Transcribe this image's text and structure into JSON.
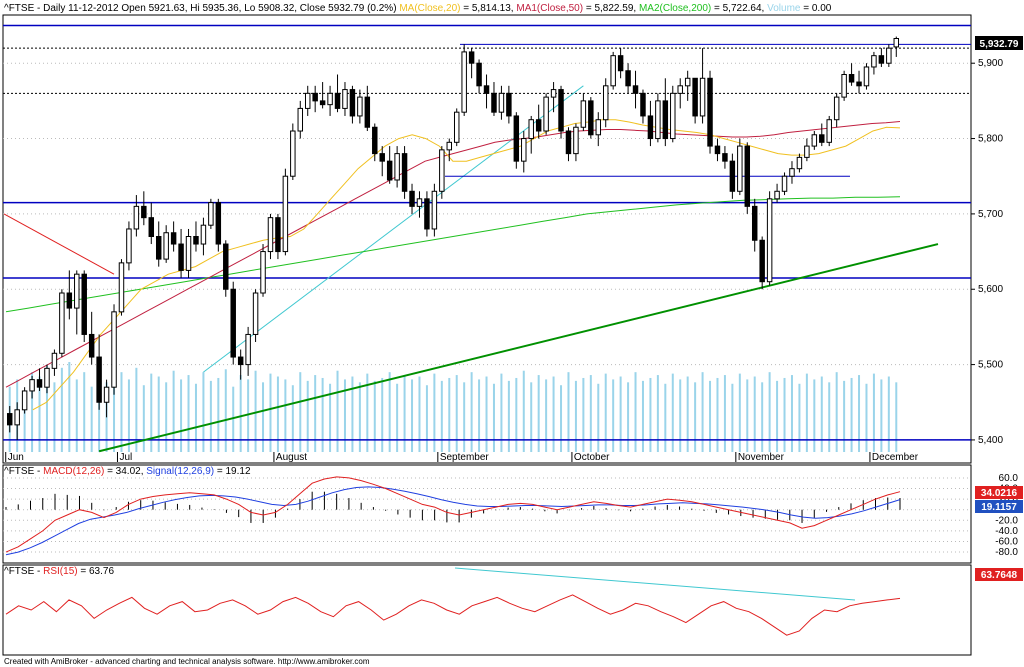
{
  "main_header": {
    "ticker": "^FTSE",
    "ohlc": "- Daily 11-12-2012 Open 5921.63, Hi 5935.36, Lo 5908.32, Close 5932.79 (0.2%)",
    "ma20_label": "MA(Close,20)",
    "ma20_value": "= 5,814.13,",
    "ma50_label": "MA1(Close,50)",
    "ma50_value": "= 5,822.59,",
    "ma200_label": "MA2(Close,200)",
    "ma200_value": "= 5,722.64,",
    "volume_label": "Volume",
    "volume_value": "= 0.00"
  },
  "macd_header": {
    "ticker": "^FTSE",
    "macd_label": "MACD(12,26)",
    "macd_value": "= 34.02,",
    "signal_label": "Signal(12,26,9)",
    "signal_value": "= 19.12"
  },
  "rsi_header": {
    "ticker": "^FTSE",
    "rsi_label": "RSI(15)",
    "rsi_value": "= 63.76"
  },
  "badges": {
    "price": "5,932.79",
    "macd": "34.0216",
    "signal": "19.1157",
    "rsi": "63.7648"
  },
  "footer": "Created with AmiBroker - advanced charting and technical analysis software. http://www.amibroker.com",
  "colors": {
    "ma20": "#f0c020",
    "ma50": "#c02040",
    "ma200": "#20c020",
    "volume": "#9ad4ea",
    "macd": "#e02020",
    "signal": "#2040e0",
    "rsi": "#e02020",
    "trend_green": "#009000",
    "trend_cyan": "#40c8d0",
    "hline_blue": "#0000c0",
    "badge_price": "#000000",
    "badge_macd": "#e02020",
    "badge_signal": "#2050c0",
    "badge_rsi": "#e02020"
  },
  "chart_data": [
    {
      "type": "candlestick",
      "x_axis_labels": [
        "Jun",
        "Jul",
        "August",
        "September",
        "October",
        "November",
        "December"
      ],
      "y_ticks": [
        "5,400",
        "5,500",
        "5,600",
        "5,700",
        "5,800",
        "5,900"
      ],
      "ylim": [
        5380,
        5960
      ],
      "horizontal_levels": [
        5950,
        5920,
        5860,
        5715,
        5615,
        5400
      ],
      "candles": [
        [
          5435,
          5445,
          5410,
          5420
        ],
        [
          5420,
          5450,
          5400,
          5440
        ],
        [
          5440,
          5470,
          5435,
          5465
        ],
        [
          5465,
          5485,
          5455,
          5480
        ],
        [
          5480,
          5495,
          5465,
          5470
        ],
        [
          5470,
          5500,
          5462,
          5495
        ],
        [
          5495,
          5520,
          5485,
          5515
        ],
        [
          5515,
          5600,
          5510,
          5595
        ],
        [
          5595,
          5625,
          5560,
          5575
        ],
        [
          5575,
          5625,
          5540,
          5620
        ],
        [
          5620,
          5625,
          5530,
          5540
        ],
        [
          5540,
          5570,
          5500,
          5510
        ],
        [
          5510,
          5540,
          5440,
          5450
        ],
        [
          5450,
          5480,
          5430,
          5470
        ],
        [
          5470,
          5580,
          5460,
          5570
        ],
        [
          5570,
          5640,
          5565,
          5635
        ],
        [
          5635,
          5690,
          5625,
          5680
        ],
        [
          5680,
          5725,
          5670,
          5710
        ],
        [
          5710,
          5730,
          5685,
          5695
        ],
        [
          5695,
          5715,
          5660,
          5670
        ],
        [
          5670,
          5690,
          5630,
          5640
        ],
        [
          5640,
          5685,
          5635,
          5675
        ],
        [
          5675,
          5690,
          5650,
          5660
        ],
        [
          5660,
          5680,
          5615,
          5625
        ],
        [
          5625,
          5680,
          5615,
          5670
        ],
        [
          5670,
          5690,
          5650,
          5660
        ],
        [
          5660,
          5695,
          5645,
          5685
        ],
        [
          5685,
          5720,
          5680,
          5715
        ],
        [
          5715,
          5720,
          5650,
          5660
        ],
        [
          5660,
          5665,
          5590,
          5600
        ],
        [
          5600,
          5610,
          5500,
          5510
        ],
        [
          5510,
          5520,
          5480,
          5500
        ],
        [
          5500,
          5550,
          5485,
          5540
        ],
        [
          5540,
          5600,
          5530,
          5595
        ],
        [
          5595,
          5660,
          5590,
          5650
        ],
        [
          5650,
          5700,
          5640,
          5695
        ],
        [
          5695,
          5700,
          5640,
          5650
        ],
        [
          5650,
          5760,
          5645,
          5750
        ],
        [
          5750,
          5820,
          5745,
          5810
        ],
        [
          5810,
          5850,
          5800,
          5840
        ],
        [
          5840,
          5870,
          5830,
          5860
        ],
        [
          5860,
          5870,
          5835,
          5850
        ],
        [
          5850,
          5875,
          5840,
          5845
        ],
        [
          5845,
          5870,
          5830,
          5860
        ],
        [
          5860,
          5885,
          5835,
          5840
        ],
        [
          5840,
          5875,
          5830,
          5865
        ],
        [
          5865,
          5870,
          5820,
          5830
        ],
        [
          5830,
          5865,
          5820,
          5855
        ],
        [
          5855,
          5870,
          5810,
          5815
        ],
        [
          5815,
          5820,
          5770,
          5780
        ],
        [
          5780,
          5790,
          5750,
          5770
        ],
        [
          5770,
          5790,
          5740,
          5745
        ],
        [
          5745,
          5790,
          5735,
          5780
        ],
        [
          5780,
          5790,
          5720,
          5730
        ],
        [
          5730,
          5740,
          5700,
          5710
        ],
        [
          5710,
          5730,
          5695,
          5720
        ],
        [
          5720,
          5730,
          5670,
          5680
        ],
        [
          5680,
          5740,
          5670,
          5730
        ],
        [
          5730,
          5790,
          5720,
          5785
        ],
        [
          5785,
          5800,
          5770,
          5795
        ],
        [
          5795,
          5840,
          5790,
          5835
        ],
        [
          5835,
          5925,
          5830,
          5915
        ],
        [
          5915,
          5920,
          5880,
          5900
        ],
        [
          5900,
          5905,
          5860,
          5870
        ],
        [
          5870,
          5885,
          5840,
          5860
        ],
        [
          5860,
          5875,
          5830,
          5835
        ],
        [
          5835,
          5870,
          5825,
          5860
        ],
        [
          5860,
          5870,
          5820,
          5830
        ],
        [
          5830,
          5835,
          5760,
          5770
        ],
        [
          5770,
          5810,
          5755,
          5800
        ],
        [
          5800,
          5830,
          5780,
          5825
        ],
        [
          5825,
          5845,
          5800,
          5810
        ],
        [
          5810,
          5860,
          5805,
          5855
        ],
        [
          5855,
          5875,
          5835,
          5865
        ],
        [
          5865,
          5870,
          5800,
          5810
        ],
        [
          5810,
          5815,
          5770,
          5780
        ],
        [
          5780,
          5820,
          5770,
          5815
        ],
        [
          5815,
          5860,
          5810,
          5850
        ],
        [
          5850,
          5855,
          5800,
          5805
        ],
        [
          5805,
          5835,
          5790,
          5825
        ],
        [
          5825,
          5880,
          5815,
          5870
        ],
        [
          5870,
          5915,
          5865,
          5910
        ],
        [
          5910,
          5920,
          5880,
          5890
        ],
        [
          5890,
          5900,
          5860,
          5870
        ],
        [
          5870,
          5890,
          5840,
          5860
        ],
        [
          5860,
          5865,
          5820,
          5830
        ],
        [
          5830,
          5850,
          5790,
          5800
        ],
        [
          5800,
          5860,
          5795,
          5850
        ],
        [
          5850,
          5880,
          5790,
          5800
        ],
        [
          5800,
          5870,
          5795,
          5860
        ],
        [
          5860,
          5880,
          5840,
          5870
        ],
        [
          5870,
          5890,
          5850,
          5880
        ],
        [
          5880,
          5880,
          5820,
          5830
        ],
        [
          5830,
          5920,
          5820,
          5880
        ],
        [
          5880,
          5890,
          5780,
          5790
        ],
        [
          5790,
          5800,
          5770,
          5780
        ],
        [
          5780,
          5790,
          5760,
          5770
        ],
        [
          5770,
          5780,
          5720,
          5730
        ],
        [
          5730,
          5800,
          5725,
          5790
        ],
        [
          5790,
          5795,
          5700,
          5710
        ],
        [
          5710,
          5720,
          5650,
          5665
        ],
        [
          5665,
          5670,
          5600,
          5610
        ],
        [
          5610,
          5730,
          5605,
          5720
        ],
        [
          5720,
          5740,
          5715,
          5730
        ],
        [
          5730,
          5755,
          5725,
          5750
        ],
        [
          5750,
          5770,
          5740,
          5760
        ],
        [
          5760,
          5780,
          5755,
          5775
        ],
        [
          5775,
          5800,
          5770,
          5790
        ],
        [
          5790,
          5810,
          5785,
          5805
        ],
        [
          5805,
          5820,
          5790,
          5795
        ],
        [
          5795,
          5830,
          5790,
          5825
        ],
        [
          5825,
          5860,
          5815,
          5855
        ],
        [
          5855,
          5890,
          5850,
          5885
        ],
        [
          5885,
          5900,
          5870,
          5875
        ],
        [
          5875,
          5890,
          5860,
          5870
        ],
        [
          5870,
          5900,
          5865,
          5895
        ],
        [
          5895,
          5915,
          5885,
          5910
        ],
        [
          5910,
          5920,
          5895,
          5900
        ],
        [
          5900,
          5925,
          5895,
          5920
        ],
        [
          5921.63,
          5935.36,
          5908.32,
          5932.79
        ]
      ],
      "ma20": [
        5440,
        5450,
        5470,
        5490,
        5515,
        5540,
        5560,
        5580,
        5600,
        5610,
        5620,
        5625,
        5630,
        5640,
        5650,
        5655,
        5660,
        5665,
        5668,
        5670,
        5680,
        5700,
        5720,
        5740,
        5760,
        5775,
        5790,
        5800,
        5805,
        5800,
        5790,
        5770,
        5770,
        5775,
        5780,
        5785,
        5790,
        5800,
        5810,
        5815,
        5820,
        5822,
        5825,
        5825,
        5822,
        5818,
        5815,
        5812,
        5810,
        5808,
        5805,
        5800,
        5795,
        5790,
        5785,
        5780,
        5778,
        5778,
        5780,
        5785,
        5790,
        5800,
        5810,
        5815,
        5814.13
      ],
      "ma50": [
        5470,
        5480,
        5490,
        5500,
        5510,
        5520,
        5530,
        5540,
        5550,
        5560,
        5570,
        5580,
        5590,
        5600,
        5610,
        5620,
        5630,
        5640,
        5650,
        5660,
        5670,
        5680,
        5690,
        5700,
        5710,
        5720,
        5730,
        5740,
        5750,
        5760,
        5770,
        5775,
        5780,
        5785,
        5790,
        5795,
        5798,
        5800,
        5802,
        5805,
        5808,
        5810,
        5811,
        5812,
        5812,
        5811,
        5810,
        5808,
        5806,
        5805,
        5804,
        5803,
        5802,
        5802,
        5803,
        5805,
        5808,
        5810,
        5812,
        5814,
        5816,
        5818,
        5820,
        5821,
        5822.59
      ],
      "ma200": [
        5570,
        5575,
        5580,
        5585,
        5590,
        5595,
        5600,
        5605,
        5610,
        5615,
        5620,
        5625,
        5630,
        5635,
        5640,
        5645,
        5650,
        5655,
        5660,
        5665,
        5670,
        5675,
        5680,
        5685,
        5690,
        5695,
        5700,
        5703,
        5706,
        5709,
        5712,
        5714,
        5716,
        5718,
        5719,
        5720,
        5721,
        5721,
        5722,
        5722,
        5722.64
      ],
      "volume_note": "Volume bars (lightblue)",
      "volume": [
        45,
        50,
        40,
        55,
        52,
        60,
        48,
        58,
        62,
        50,
        55,
        45,
        52,
        48,
        60,
        55,
        50,
        58,
        46,
        54,
        52,
        48,
        56,
        50,
        53,
        47,
        55,
        49,
        51,
        57,
        45,
        53,
        50,
        56,
        48,
        54,
        52,
        50,
        46,
        55,
        49,
        53,
        51,
        47,
        56,
        50,
        52,
        48,
        54,
        49,
        51,
        55,
        47,
        53,
        50,
        52,
        46,
        54,
        49,
        51,
        53,
        48,
        55,
        50,
        52,
        47,
        54,
        49,
        51,
        56,
        48,
        53,
        50,
        52,
        46,
        55,
        49,
        51,
        53,
        47,
        54,
        50,
        52,
        48,
        55,
        49,
        51,
        53,
        47,
        54,
        50,
        52,
        48,
        55,
        49,
        51,
        53,
        47,
        54,
        50,
        52,
        48,
        55,
        49,
        51,
        53,
        47,
        54,
        50,
        52,
        48,
        55,
        49,
        51,
        53,
        47,
        54,
        50,
        52,
        48
      ]
    },
    {
      "type": "line",
      "name_macd": "MACD(12,26)",
      "name_signal": "Signal(12,26,9)",
      "y_ticks": [
        "60.0",
        "40.0",
        "20.0",
        "-20.0",
        "-40.0",
        "-60.0",
        "-80.0"
      ],
      "ylim": [
        -95,
        75
      ],
      "macd": [
        -80,
        -70,
        -55,
        -40,
        -20,
        -10,
        0,
        -5,
        -15,
        -5,
        10,
        20,
        25,
        28,
        30,
        32,
        30,
        28,
        20,
        10,
        -5,
        -10,
        -5,
        10,
        30,
        50,
        58,
        62,
        60,
        55,
        48,
        40,
        30,
        20,
        10,
        5,
        -5,
        -10,
        -5,
        0,
        5,
        10,
        12,
        10,
        5,
        0,
        5,
        10,
        15,
        12,
        8,
        5,
        10,
        15,
        20,
        18,
        15,
        10,
        5,
        0,
        -5,
        -10,
        -15,
        -20,
        -25,
        -35,
        -30,
        -20,
        -10,
        0,
        10,
        20,
        28,
        34.02
      ],
      "signal": [
        -85,
        -80,
        -72,
        -62,
        -50,
        -38,
        -26,
        -18,
        -14,
        -10,
        -5,
        2,
        8,
        14,
        19,
        23,
        26,
        27,
        26,
        24,
        20,
        15,
        10,
        8,
        10,
        16,
        24,
        32,
        38,
        42,
        43,
        42,
        39,
        35,
        30,
        25,
        19,
        14,
        10,
        7,
        6,
        6,
        7,
        8,
        8,
        7,
        6,
        7,
        8,
        9,
        9,
        8,
        8,
        9,
        11,
        12,
        13,
        12,
        11,
        9,
        7,
        5,
        2,
        -1,
        -5,
        -10,
        -14,
        -16,
        -15,
        -12,
        -8,
        -2,
        5,
        12,
        19.12
      ]
    },
    {
      "type": "line",
      "name": "RSI(15)",
      "ylim": [
        0,
        100
      ],
      "rsi": [
        45,
        55,
        50,
        60,
        48,
        62,
        55,
        40,
        50,
        58,
        65,
        52,
        45,
        55,
        60,
        48,
        50,
        58,
        62,
        55,
        45,
        50,
        60,
        65,
        58,
        48,
        42,
        55,
        60,
        50,
        38,
        45,
        55,
        62,
        58,
        50,
        45,
        55,
        60,
        65,
        58,
        52,
        48,
        55,
        62,
        68,
        60,
        52,
        45,
        50,
        58,
        55,
        48,
        42,
        35,
        45,
        55,
        60,
        52,
        48,
        40,
        30,
        20,
        25,
        40,
        50,
        48,
        55,
        58,
        60,
        62,
        63.76
      ]
    }
  ]
}
